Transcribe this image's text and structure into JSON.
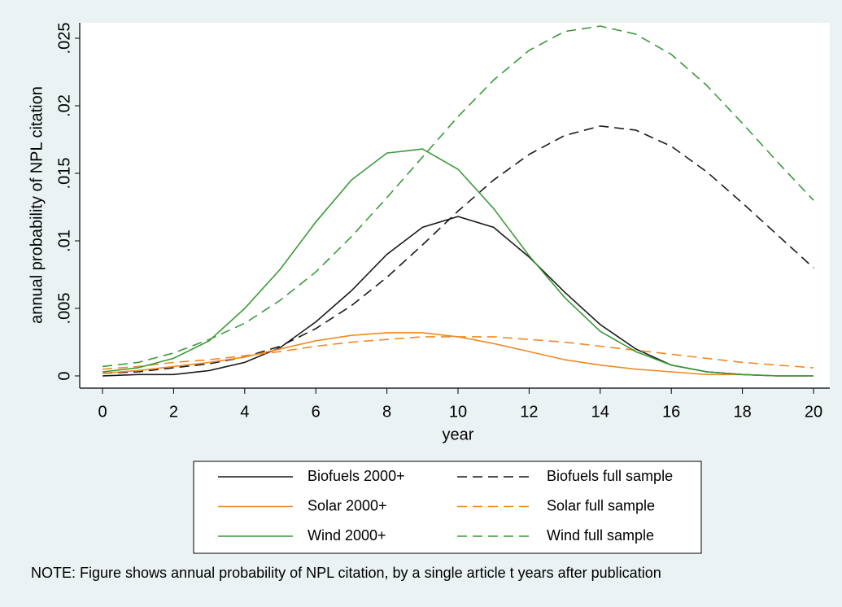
{
  "chart_data": {
    "type": "line",
    "x_label": "year",
    "y_label": "annual probability of NPL citation",
    "note": "NOTE: Figure shows annual probability of NPL citation, by a single article t years after publication",
    "x": [
      0,
      1,
      2,
      3,
      4,
      5,
      6,
      7,
      8,
      9,
      10,
      11,
      12,
      13,
      14,
      15,
      16,
      17,
      18,
      19,
      20
    ],
    "xlim": [
      0,
      20
    ],
    "xticks": [
      0,
      2,
      4,
      6,
      8,
      10,
      12,
      14,
      16,
      18,
      20
    ],
    "ylim": [
      0,
      0.025
    ],
    "yticks": [
      0,
      {
        "value": 0.005,
        "label": ".005"
      },
      {
        "value": 0.01,
        "label": ".01"
      },
      {
        "value": 0.015,
        "label": ".015"
      },
      {
        "value": 0.02,
        "label": ".02"
      },
      {
        "value": 0.025,
        "label": ".025"
      }
    ],
    "series": [
      {
        "name": "Biofuels 2000+",
        "color": "#1a1a1a",
        "dashed": false,
        "values": [
          0.0,
          0.0001,
          0.0001,
          0.0004,
          0.001,
          0.0021,
          0.004,
          0.0063,
          0.009,
          0.011,
          0.0118,
          0.011,
          0.0088,
          0.0062,
          0.0038,
          0.002,
          0.0008,
          0.0003,
          0.0001,
          0.0,
          0.0
        ]
      },
      {
        "name": "Biofuels full sample",
        "color": "#1a1a1a",
        "dashed": true,
        "values": [
          0.0002,
          0.0003,
          0.0006,
          0.0009,
          0.0014,
          0.0022,
          0.0035,
          0.0052,
          0.0073,
          0.0097,
          0.0122,
          0.0145,
          0.0164,
          0.0178,
          0.0185,
          0.0182,
          0.017,
          0.0151,
          0.0128,
          0.0104,
          0.008
        ]
      },
      {
        "name": "Solar 2000+",
        "color": "#f08a24",
        "dashed": false,
        "values": [
          0.0002,
          0.0004,
          0.0007,
          0.001,
          0.0014,
          0.002,
          0.0026,
          0.003,
          0.0032,
          0.0032,
          0.0029,
          0.0024,
          0.0018,
          0.0012,
          0.0008,
          0.0005,
          0.0003,
          0.0001,
          0.0001,
          0.0,
          0.0
        ]
      },
      {
        "name": "Solar full sample",
        "color": "#f08a24",
        "dashed": true,
        "values": [
          0.0005,
          0.0007,
          0.001,
          0.0012,
          0.0015,
          0.0018,
          0.0022,
          0.0025,
          0.0027,
          0.0029,
          0.0029,
          0.0029,
          0.0027,
          0.0025,
          0.0022,
          0.0019,
          0.0016,
          0.0013,
          0.001,
          0.0008,
          0.0006
        ]
      },
      {
        "name": "Wind 2000+",
        "color": "#3a9a3a",
        "dashed": false,
        "values": [
          0.0003,
          0.0006,
          0.0013,
          0.0026,
          0.005,
          0.0079,
          0.0114,
          0.0145,
          0.0165,
          0.0168,
          0.0153,
          0.0124,
          0.0089,
          0.0058,
          0.0033,
          0.0018,
          0.0008,
          0.0003,
          0.0001,
          0.0,
          0.0
        ]
      },
      {
        "name": "Wind full sample",
        "color": "#3a9a3a",
        "dashed": true,
        "values": [
          0.0007,
          0.001,
          0.0017,
          0.0027,
          0.0039,
          0.0056,
          0.0077,
          0.0103,
          0.0132,
          0.0162,
          0.0192,
          0.0219,
          0.0241,
          0.0255,
          0.0259,
          0.0253,
          0.0238,
          0.0215,
          0.0187,
          0.0158,
          0.013
        ]
      }
    ]
  }
}
